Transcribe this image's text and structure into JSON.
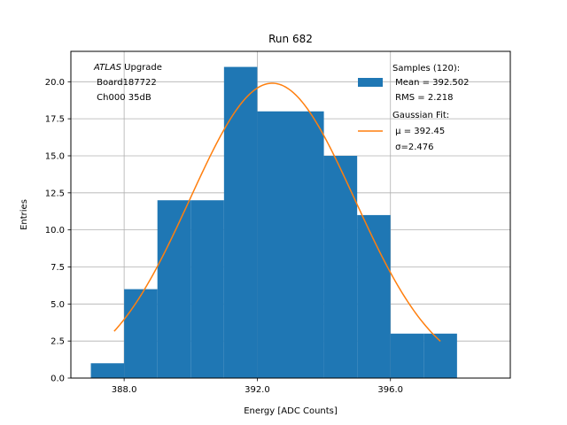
{
  "chart_data": {
    "type": "bar",
    "title": "Run 682",
    "xlabel": "Energy [ADC Counts]",
    "ylabel": "Entries",
    "xlim": [
      386.4,
      399.6
    ],
    "ylim": [
      0,
      22.05
    ],
    "grid": true,
    "x_ticks": [
      388.0,
      392.0,
      396.0
    ],
    "x_tick_labels": [
      "388.0",
      "392.0",
      "396.0"
    ],
    "y_ticks": [
      0.0,
      2.5,
      5.0,
      7.5,
      10.0,
      12.5,
      15.0,
      17.5,
      20.0
    ],
    "y_tick_labels": [
      "0.0",
      "2.5",
      "5.0",
      "7.5",
      "10.0",
      "12.5",
      "15.0",
      "17.5",
      "20.0"
    ],
    "histogram": {
      "name": "Samples (120)",
      "color": "#1f77b4",
      "bin_edges": [
        387,
        388,
        389,
        390,
        391,
        392,
        393,
        394,
        395,
        396,
        397,
        398
      ],
      "counts": [
        1,
        6,
        12,
        12,
        21,
        18,
        18,
        15,
        11,
        3,
        3
      ]
    },
    "fit": {
      "name": "Gaussian Fit",
      "color": "#ff7f0e",
      "mu": 392.45,
      "sigma": 2.476,
      "amplitude": 19.9,
      "x_range": [
        387.7,
        397.5
      ]
    },
    "legend": {
      "position": "upper right",
      "hist_lines": [
        "Samples (120):",
        " Mean = 392.502",
        " RMS = 2.218"
      ],
      "fit_lines": [
        "Gaussian Fit:",
        " μ = 392.45",
        " σ=2.476"
      ]
    },
    "annotation": {
      "italic": "ATLAS",
      "rest": " Upgrade",
      "lines": [
        " Board187722",
        " Ch000 35dB"
      ]
    }
  }
}
